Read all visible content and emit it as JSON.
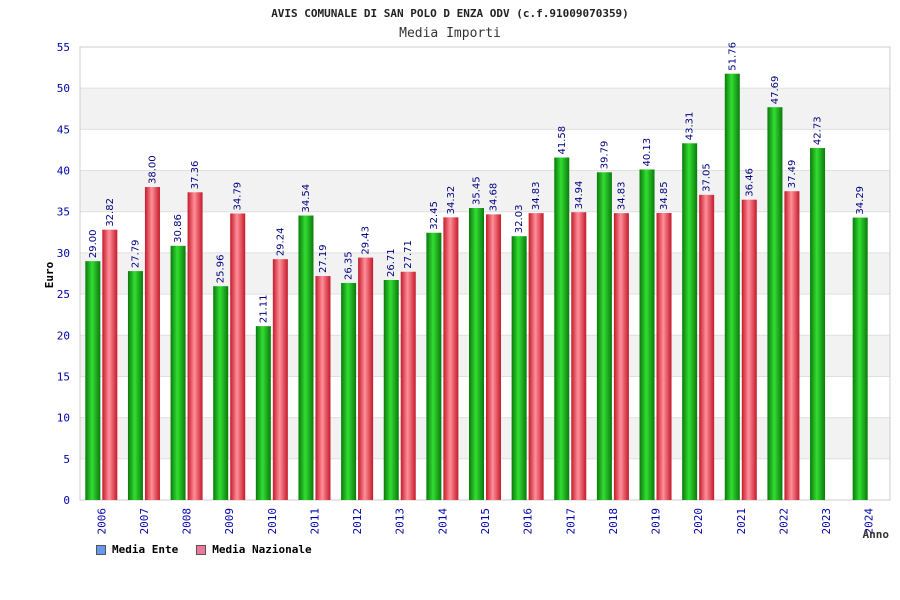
{
  "chart_data": {
    "type": "bar",
    "title": "AVIS COMUNALE DI SAN POLO D ENZA ODV (c.f.91009070359)",
    "subtitle": "Media Importi",
    "ylabel": "Euro",
    "xlabel": "Anno",
    "ylim": [
      0,
      55
    ],
    "yticks": [
      "0",
      "5",
      "10",
      "15",
      "20",
      "25",
      "30",
      "35",
      "40",
      "45",
      "50",
      "55"
    ],
    "grid": true,
    "legend_position": "bottom-left",
    "categories": [
      "2006",
      "2007",
      "2008",
      "2009",
      "2010",
      "2011",
      "2012",
      "2013",
      "2014",
      "2015",
      "2016",
      "2017",
      "2018",
      "2019",
      "2020",
      "2021",
      "2022",
      "2023",
      "2024"
    ],
    "series": [
      {
        "name": "Media Ente",
        "color": "#22bb22",
        "legend_color": "#6699ee",
        "values": [
          29.0,
          27.79,
          30.86,
          25.96,
          21.11,
          34.54,
          26.35,
          26.71,
          32.45,
          35.45,
          32.03,
          41.58,
          39.79,
          40.13,
          43.31,
          51.76,
          47.69,
          42.73,
          34.29
        ],
        "labels": [
          "29.00",
          "27.79",
          "30.86",
          "25.96",
          "21.11",
          "34.54",
          "26.35",
          "26.71",
          "32.45",
          "35.45",
          "32.03",
          "41.58",
          "39.79",
          "40.13",
          "43.31",
          "51.76",
          "47.69",
          "42.73",
          "34.29"
        ]
      },
      {
        "name": "Media Nazionale",
        "color": "#ee3344",
        "legend_color": "#ee7799",
        "values": [
          32.82,
          38.0,
          37.36,
          34.79,
          29.24,
          27.19,
          29.43,
          27.71,
          34.32,
          34.68,
          34.83,
          34.94,
          34.83,
          34.85,
          37.05,
          36.46,
          37.49,
          null,
          null
        ],
        "labels": [
          "32.82",
          "38.00",
          "37.36",
          "34.79",
          "29.24",
          "27.19",
          "29.43",
          "27.71",
          "34.32",
          "34.68",
          "34.83",
          "34.94",
          "34.83",
          "34.85",
          "37.05",
          "36.46",
          "37.49",
          null,
          null
        ]
      }
    ]
  }
}
